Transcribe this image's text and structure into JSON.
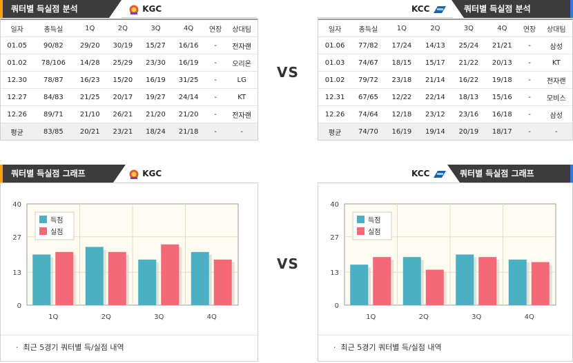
{
  "left": {
    "table_header": {
      "title": "쿼터별 득실점 분석",
      "team": "KGC"
    },
    "columns": [
      "일자",
      "총득실",
      "1Q",
      "2Q",
      "3Q",
      "4Q",
      "연장",
      "상대팀"
    ],
    "rows": [
      [
        "01.05",
        "90/82",
        "29/20",
        "30/19",
        "15/27",
        "16/16",
        "-",
        "전자랜"
      ],
      [
        "01.02",
        "78/106",
        "14/28",
        "25/29",
        "23/30",
        "16/19",
        "-",
        "오리온"
      ],
      [
        "12.30",
        "78/87",
        "16/23",
        "15/20",
        "16/19",
        "31/25",
        "-",
        "LG"
      ],
      [
        "12.27",
        "84/83",
        "21/25",
        "20/17",
        "19/27",
        "24/14",
        "-",
        "KT"
      ],
      [
        "12.26",
        "89/71",
        "21/10",
        "26/21",
        "21/20",
        "21/20",
        "-",
        "전자랜"
      ]
    ],
    "avg": [
      "평균",
      "83/85",
      "20/21",
      "23/21",
      "18/24",
      "21/18",
      "-",
      "-"
    ],
    "graph_header": {
      "title": "쿼터별 득실점 그래프",
      "team": "KGC"
    },
    "note": "최근 5경기 쿼터별 득/실점 내역"
  },
  "right": {
    "table_header": {
      "title": "쿼터별 득실점 분석",
      "team": "KCC"
    },
    "columns": [
      "일자",
      "총득실",
      "1Q",
      "2Q",
      "3Q",
      "4Q",
      "연장",
      "상대팀"
    ],
    "rows": [
      [
        "01.06",
        "77/82",
        "17/24",
        "14/13",
        "25/24",
        "21/21",
        "-",
        "삼성"
      ],
      [
        "01.03",
        "74/67",
        "18/15",
        "15/17",
        "21/22",
        "20/13",
        "-",
        "KT"
      ],
      [
        "01.02",
        "79/72",
        "23/18",
        "21/14",
        "16/22",
        "19/18",
        "-",
        "전자랜"
      ],
      [
        "12.31",
        "67/65",
        "12/22",
        "22/14",
        "18/13",
        "15/16",
        "-",
        "모비스"
      ],
      [
        "12.26",
        "74/64",
        "12/18",
        "23/12",
        "23/16",
        "16/18",
        "-",
        "삼성"
      ]
    ],
    "avg": [
      "평균",
      "74/70",
      "16/19",
      "19/14",
      "20/19",
      "18/17",
      "-",
      "-"
    ],
    "graph_header": {
      "title": "쿼터별 득실점 그래프",
      "team": "KCC"
    },
    "note": "최근 5경기 쿼터별 득/실점 내역"
  },
  "vs_label": "VS",
  "colors": {
    "scored": "#4bb0c3",
    "allowed": "#f46877",
    "plot_bg": "#fefcf1",
    "header_dark": "#3c3c3c",
    "accent_left": "#f0a30a",
    "accent_right": "#2a7be6"
  },
  "chart_data": [
    {
      "type": "bar",
      "title": "",
      "categories": [
        "1Q",
        "2Q",
        "3Q",
        "4Q"
      ],
      "series": [
        {
          "name": "득점",
          "values": [
            20,
            23,
            18,
            21
          ]
        },
        {
          "name": "실점",
          "values": [
            21,
            21,
            24,
            18
          ]
        }
      ],
      "yticks": [
        0,
        13,
        27,
        40
      ],
      "ylim": [
        0,
        40
      ],
      "legend": "top-left",
      "grid": true
    },
    {
      "type": "bar",
      "title": "",
      "categories": [
        "1Q",
        "2Q",
        "3Q",
        "4Q"
      ],
      "series": [
        {
          "name": "득점",
          "values": [
            16,
            19,
            20,
            18
          ]
        },
        {
          "name": "실점",
          "values": [
            19,
            14,
            19,
            17
          ]
        }
      ],
      "yticks": [
        0,
        13,
        27,
        40
      ],
      "ylim": [
        0,
        40
      ],
      "legend": "top-left",
      "grid": true
    }
  ]
}
